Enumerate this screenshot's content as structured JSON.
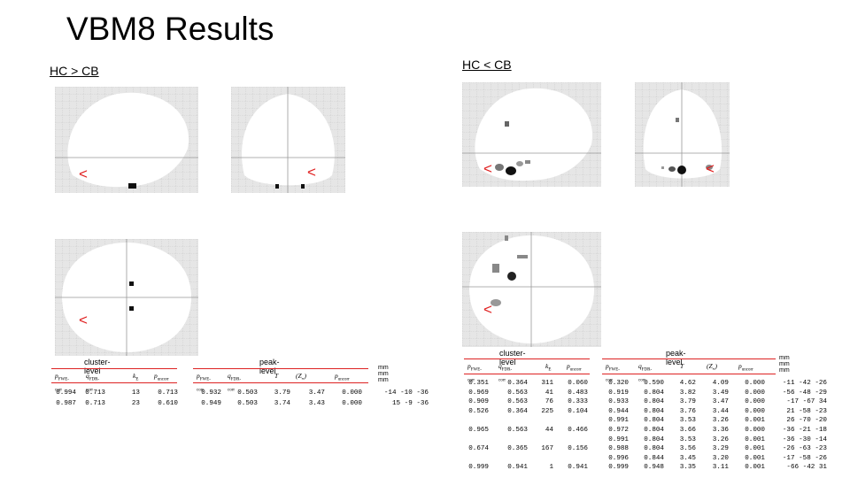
{
  "slide": {
    "title": "VBM8 Results",
    "left_subtitle": "HC > CB",
    "right_subtitle": "HC < CB",
    "markers": {
      "arrow_glyph": "<",
      "arrow_color": "#e02020"
    }
  },
  "tables": {
    "left": {
      "cluster_header": "cluster-level",
      "peak_header": "peak-level",
      "mm_header": "mm mm mm",
      "columns": [
        "p FWE-corr",
        "q FDR-corr",
        "k E",
        "p uncorr",
        "p FWE-corr",
        "q FDR-corr",
        "T",
        "(Z≡)",
        "p uncorr"
      ],
      "rows": [
        [
          "0.994",
          "0.713",
          "13",
          "0.713",
          "0.932",
          "0.503",
          "3.79",
          "3.47",
          "0.000",
          "-14 -10 -36"
        ],
        [
          "0.987",
          "0.713",
          "23",
          "0.610",
          "0.949",
          "0.503",
          "3.74",
          "3.43",
          "0.000",
          "15  -9 -36"
        ]
      ]
    },
    "right": {
      "cluster_header": "cluster-level",
      "peak_header": "peak-level",
      "mm_header": "mm mm mm",
      "columns": [
        "p FWE-corr",
        "q FDR-corr",
        "k E",
        "p uncorr",
        "p FWE-corr",
        "q FDR-corr",
        "T",
        "(Z≡)",
        "p uncorr"
      ],
      "rows": [
        [
          "0.351",
          "0.364",
          "311",
          "0.060",
          "0.320",
          "0.590",
          "4.62",
          "4.09",
          "0.000",
          "-11 -42 -26"
        ],
        [
          "0.969",
          "0.563",
          "41",
          "0.483",
          "0.919",
          "0.804",
          "3.82",
          "3.49",
          "0.000",
          "-56 -48 -29"
        ],
        [
          "0.909",
          "0.563",
          "76",
          "0.333",
          "0.933",
          "0.804",
          "3.79",
          "3.47",
          "0.000",
          "-17 -67  34"
        ],
        [
          "0.526",
          "0.364",
          "225",
          "0.104",
          "0.944",
          "0.804",
          "3.76",
          "3.44",
          "0.000",
          "21 -58 -23"
        ],
        [
          "",
          "",
          "",
          "",
          "0.991",
          "0.804",
          "3.53",
          "3.26",
          "0.001",
          "26 -70 -20"
        ],
        [
          "0.965",
          "0.563",
          "44",
          "0.466",
          "0.972",
          "0.804",
          "3.66",
          "3.36",
          "0.000",
          "-36 -21 -18"
        ],
        [
          "",
          "",
          "",
          "",
          "0.991",
          "0.804",
          "3.53",
          "3.26",
          "0.001",
          "-36 -30 -14"
        ],
        [
          "0.674",
          "0.365",
          "167",
          "0.156",
          "0.988",
          "0.804",
          "3.56",
          "3.29",
          "0.001",
          "-26 -63 -23"
        ],
        [
          "",
          "",
          "",
          "",
          "0.996",
          "0.844",
          "3.45",
          "3.20",
          "0.001",
          "-17 -58 -26"
        ],
        [
          "0.999",
          "0.941",
          "1",
          "0.941",
          "0.999",
          "0.948",
          "3.35",
          "3.11",
          "0.001",
          "-66 -42  31"
        ]
      ]
    }
  }
}
